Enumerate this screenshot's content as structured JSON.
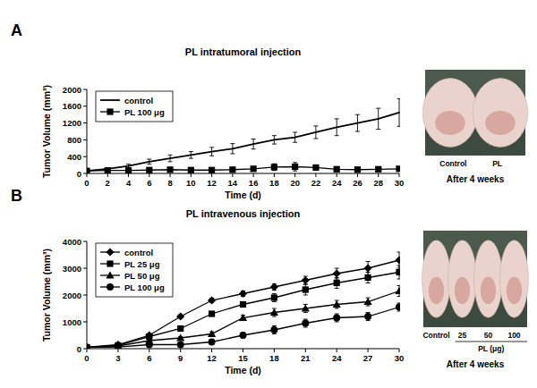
{
  "chart_data": [
    {
      "type": "line",
      "title": "PL intratumoral injection",
      "xlabel": "Time (d)",
      "ylabel": "Tumor Volume (mm³)",
      "x": [
        0,
        2,
        4,
        6,
        8,
        10,
        12,
        14,
        16,
        18,
        20,
        22,
        24,
        26,
        28,
        30
      ],
      "xlim": [
        0,
        30
      ],
      "xticks": [
        0,
        2,
        4,
        6,
        8,
        10,
        12,
        14,
        16,
        18,
        20,
        22,
        24,
        26,
        28,
        30
      ],
      "ylim": [
        0,
        2000
      ],
      "yticks": [
        0,
        400,
        800,
        1200,
        1600,
        2000
      ],
      "legend": "upper left",
      "grid": false,
      "series": [
        {
          "name": "control",
          "color": "#000000",
          "marker": "none",
          "line_style": "solid",
          "values": [
            60,
            110,
            180,
            280,
            360,
            440,
            520,
            590,
            700,
            800,
            860,
            980,
            1100,
            1200,
            1300,
            1450
          ],
          "errors": [
            10,
            20,
            40,
            60,
            80,
            80,
            100,
            120,
            120,
            100,
            120,
            150,
            200,
            200,
            250,
            330
          ]
        },
        {
          "name": "PL 100 μg",
          "color": "#000000",
          "marker": "square",
          "line_style": "solid",
          "values": [
            60,
            70,
            70,
            80,
            90,
            80,
            80,
            90,
            110,
            150,
            160,
            140,
            100,
            90,
            100,
            110
          ],
          "errors": [
            10,
            10,
            15,
            15,
            20,
            20,
            20,
            30,
            40,
            80,
            100,
            60,
            30,
            20,
            20,
            30
          ]
        }
      ]
    },
    {
      "type": "line",
      "title": "PL intravenous injection",
      "xlabel": "Time (d)",
      "ylabel": "Tumor Volume (mm³)",
      "x": [
        0,
        3,
        6,
        9,
        12,
        15,
        18,
        21,
        24,
        27,
        30
      ],
      "xlim": [
        0,
        30
      ],
      "xticks": [
        0,
        3,
        6,
        9,
        12,
        15,
        18,
        21,
        24,
        27,
        30
      ],
      "ylim": [
        0,
        4000
      ],
      "yticks": [
        0,
        1000,
        2000,
        3000,
        4000
      ],
      "legend": "upper left",
      "grid": false,
      "series": [
        {
          "name": "control",
          "color": "#000000",
          "marker": "diamond",
          "line_style": "solid",
          "values": [
            50,
            150,
            500,
            1200,
            1800,
            2050,
            2300,
            2550,
            2800,
            3000,
            3300
          ],
          "errors": [
            10,
            20,
            40,
            60,
            80,
            100,
            120,
            150,
            200,
            250,
            300
          ]
        },
        {
          "name": "PL 25 μg",
          "color": "#000000",
          "marker": "square",
          "line_style": "solid",
          "values": [
            50,
            120,
            450,
            750,
            1300,
            1650,
            1900,
            2200,
            2450,
            2650,
            2850
          ],
          "errors": [
            10,
            20,
            40,
            50,
            80,
            100,
            150,
            200,
            200,
            200,
            250
          ]
        },
        {
          "name": "PL 50 μg",
          "color": "#000000",
          "marker": "triangle",
          "line_style": "solid",
          "values": [
            50,
            100,
            300,
            400,
            550,
            1150,
            1350,
            1500,
            1650,
            1750,
            2150
          ],
          "errors": [
            10,
            20,
            30,
            50,
            80,
            100,
            150,
            150,
            150,
            150,
            200
          ]
        },
        {
          "name": "PL 100 μg",
          "color": "#000000",
          "marker": "circle",
          "line_style": "solid",
          "values": [
            50,
            60,
            150,
            150,
            250,
            500,
            700,
            950,
            1150,
            1200,
            1550
          ],
          "errors": [
            10,
            10,
            20,
            30,
            50,
            100,
            150,
            150,
            150,
            150,
            150
          ]
        }
      ]
    }
  ],
  "panels": [
    {
      "label": "A",
      "photo": {
        "labels": [
          "Control",
          "PL"
        ],
        "caption": "After 4 weeks"
      }
    },
    {
      "label": "B",
      "photo": {
        "labels": [
          "Control",
          "25",
          "50",
          "100"
        ],
        "group_label": "PL (μg)",
        "caption": "After 4 weeks"
      }
    }
  ]
}
